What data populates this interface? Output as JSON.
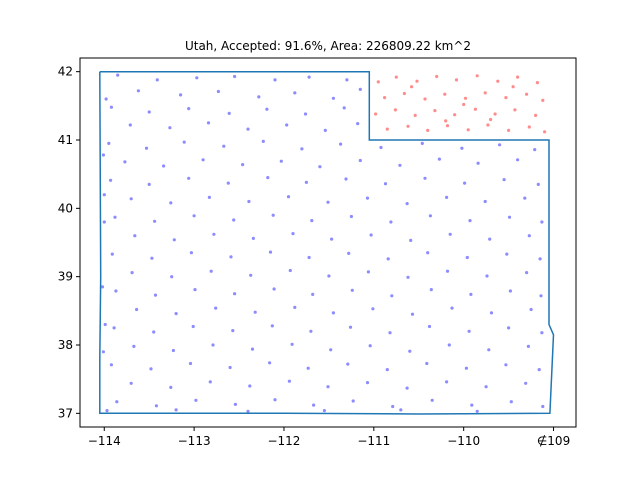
{
  "chart_data": {
    "type": "scatter",
    "title": "Utah, Accepted: 91.6%, Area: 226809.22 km^2",
    "xlabel": "",
    "ylabel": "",
    "xlim": [
      -114.27,
      -108.75
    ],
    "ylim": [
      36.8,
      42.2
    ],
    "grid": false,
    "x_ticks": [
      -114,
      -113,
      -112,
      -111,
      -110,
      -109
    ],
    "y_ticks": [
      37,
      38,
      39,
      40,
      41,
      42
    ],
    "x_tick_labels": [
      "−114",
      "−113",
      "−112",
      "−111",
      "−110",
      "∉109"
    ],
    "y_tick_labels": [
      "37",
      "38",
      "39",
      "40",
      "41",
      "42"
    ],
    "boundary": {
      "color": "#1f77b4",
      "points": [
        [
          -114.05,
          42.0
        ],
        [
          -111.05,
          42.0
        ],
        [
          -111.05,
          41.0
        ],
        [
          -109.05,
          41.0
        ],
        [
          -109.05,
          40.0
        ],
        [
          -109.05,
          39.0
        ],
        [
          -109.05,
          38.3
        ],
        [
          -109.0,
          38.15
        ],
        [
          -109.04,
          37.0
        ],
        [
          -110.5,
          36.99
        ],
        [
          -112.0,
          37.0
        ],
        [
          -114.05,
          37.0
        ],
        [
          -114.05,
          37.8
        ],
        [
          -114.04,
          39.0
        ],
        [
          -114.05,
          42.0
        ]
      ]
    },
    "series": [
      {
        "role": "accepted",
        "color": "#0000ff",
        "points": [
          [
            -113.85,
            41.95
          ],
          [
            -113.41,
            41.88
          ],
          [
            -112.97,
            41.91
          ],
          [
            -112.55,
            41.93
          ],
          [
            -112.1,
            41.88
          ],
          [
            -111.72,
            41.92
          ],
          [
            -111.3,
            41.88
          ],
          [
            -113.62,
            41.72
          ],
          [
            -113.15,
            41.66
          ],
          [
            -112.73,
            41.71
          ],
          [
            -112.28,
            41.63
          ],
          [
            -111.88,
            41.69
          ],
          [
            -111.45,
            41.61
          ],
          [
            -111.15,
            41.74
          ],
          [
            -113.92,
            41.48
          ],
          [
            -113.5,
            41.41
          ],
          [
            -113.06,
            41.46
          ],
          [
            -112.61,
            41.39
          ],
          [
            -112.19,
            41.45
          ],
          [
            -111.76,
            41.38
          ],
          [
            -111.33,
            41.47
          ],
          [
            -113.71,
            41.22
          ],
          [
            -113.27,
            41.18
          ],
          [
            -112.84,
            41.25
          ],
          [
            -112.4,
            41.16
          ],
          [
            -111.97,
            41.22
          ],
          [
            -111.54,
            41.14
          ],
          [
            -111.18,
            41.24
          ],
          [
            -113.95,
            40.95
          ],
          [
            -113.53,
            40.88
          ],
          [
            -113.11,
            40.97
          ],
          [
            -112.67,
            40.91
          ],
          [
            -112.23,
            40.98
          ],
          [
            -111.8,
            40.87
          ],
          [
            -111.37,
            40.94
          ],
          [
            -110.92,
            40.89
          ],
          [
            -110.46,
            40.95
          ],
          [
            -110.02,
            40.88
          ],
          [
            -109.6,
            40.93
          ],
          [
            -109.21,
            40.86
          ],
          [
            -113.77,
            40.68
          ],
          [
            -113.34,
            40.62
          ],
          [
            -112.9,
            40.71
          ],
          [
            -112.46,
            40.64
          ],
          [
            -112.03,
            40.69
          ],
          [
            -111.6,
            40.61
          ],
          [
            -111.15,
            40.7
          ],
          [
            -110.71,
            40.63
          ],
          [
            -110.27,
            40.72
          ],
          [
            -109.84,
            40.66
          ],
          [
            -109.4,
            40.71
          ],
          [
            -113.93,
            40.41
          ],
          [
            -113.5,
            40.35
          ],
          [
            -113.06,
            40.44
          ],
          [
            -112.62,
            40.37
          ],
          [
            -112.18,
            40.45
          ],
          [
            -111.75,
            40.38
          ],
          [
            -111.31,
            40.43
          ],
          [
            -110.87,
            40.36
          ],
          [
            -110.43,
            40.44
          ],
          [
            -109.99,
            40.37
          ],
          [
            -109.55,
            40.42
          ],
          [
            -109.17,
            40.35
          ],
          [
            -113.7,
            40.14
          ],
          [
            -113.26,
            40.08
          ],
          [
            -112.83,
            40.16
          ],
          [
            -112.39,
            40.1
          ],
          [
            -111.95,
            40.17
          ],
          [
            -111.51,
            40.09
          ],
          [
            -111.07,
            40.15
          ],
          [
            -110.63,
            40.07
          ],
          [
            -110.19,
            40.16
          ],
          [
            -109.76,
            40.1
          ],
          [
            -109.32,
            40.15
          ],
          [
            -113.88,
            39.87
          ],
          [
            -113.44,
            39.81
          ],
          [
            -113.0,
            39.89
          ],
          [
            -112.56,
            39.83
          ],
          [
            -112.12,
            39.9
          ],
          [
            -111.69,
            39.82
          ],
          [
            -111.25,
            39.88
          ],
          [
            -110.81,
            39.8
          ],
          [
            -110.37,
            39.89
          ],
          [
            -109.93,
            39.82
          ],
          [
            -109.49,
            39.87
          ],
          [
            -109.13,
            39.8
          ],
          [
            -113.66,
            39.6
          ],
          [
            -113.22,
            39.54
          ],
          [
            -112.78,
            39.62
          ],
          [
            -112.34,
            39.56
          ],
          [
            -111.9,
            39.63
          ],
          [
            -111.47,
            39.55
          ],
          [
            -111.03,
            39.61
          ],
          [
            -110.59,
            39.53
          ],
          [
            -110.15,
            39.62
          ],
          [
            -109.71,
            39.55
          ],
          [
            -109.27,
            39.6
          ],
          [
            -113.91,
            39.33
          ],
          [
            -113.47,
            39.27
          ],
          [
            -113.03,
            39.35
          ],
          [
            -112.59,
            39.29
          ],
          [
            -112.15,
            39.36
          ],
          [
            -111.72,
            39.28
          ],
          [
            -111.28,
            39.34
          ],
          [
            -110.84,
            39.26
          ],
          [
            -110.4,
            39.35
          ],
          [
            -109.96,
            39.28
          ],
          [
            -109.52,
            39.33
          ],
          [
            -109.15,
            39.26
          ],
          [
            -113.69,
            39.06
          ],
          [
            -113.25,
            39.0
          ],
          [
            -112.81,
            39.08
          ],
          [
            -112.37,
            39.02
          ],
          [
            -111.93,
            39.09
          ],
          [
            -111.5,
            39.01
          ],
          [
            -111.06,
            39.07
          ],
          [
            -110.62,
            38.99
          ],
          [
            -110.18,
            39.08
          ],
          [
            -109.74,
            39.01
          ],
          [
            -109.3,
            39.06
          ],
          [
            -113.87,
            38.79
          ],
          [
            -113.43,
            38.73
          ],
          [
            -112.99,
            38.81
          ],
          [
            -112.55,
            38.75
          ],
          [
            -112.11,
            38.82
          ],
          [
            -111.68,
            38.74
          ],
          [
            -111.24,
            38.8
          ],
          [
            -110.8,
            38.72
          ],
          [
            -110.36,
            38.81
          ],
          [
            -109.92,
            38.74
          ],
          [
            -109.48,
            38.79
          ],
          [
            -109.14,
            38.72
          ],
          [
            -113.64,
            38.52
          ],
          [
            -113.2,
            38.46
          ],
          [
            -112.76,
            38.54
          ],
          [
            -112.32,
            38.48
          ],
          [
            -111.88,
            38.55
          ],
          [
            -111.45,
            38.47
          ],
          [
            -111.01,
            38.53
          ],
          [
            -110.57,
            38.45
          ],
          [
            -110.13,
            38.54
          ],
          [
            -109.69,
            38.47
          ],
          [
            -109.25,
            38.52
          ],
          [
            -113.89,
            38.25
          ],
          [
            -113.45,
            38.19
          ],
          [
            -113.01,
            38.27
          ],
          [
            -112.57,
            38.21
          ],
          [
            -112.13,
            38.28
          ],
          [
            -111.7,
            38.2
          ],
          [
            -111.26,
            38.26
          ],
          [
            -110.82,
            38.18
          ],
          [
            -110.38,
            38.27
          ],
          [
            -109.94,
            38.2
          ],
          [
            -109.5,
            38.25
          ],
          [
            -109.13,
            38.18
          ],
          [
            -113.67,
            37.98
          ],
          [
            -113.23,
            37.92
          ],
          [
            -112.79,
            38.0
          ],
          [
            -112.35,
            37.94
          ],
          [
            -111.91,
            38.01
          ],
          [
            -111.48,
            37.93
          ],
          [
            -111.04,
            37.99
          ],
          [
            -110.6,
            37.91
          ],
          [
            -110.16,
            38.0
          ],
          [
            -109.72,
            37.93
          ],
          [
            -109.28,
            37.98
          ],
          [
            -113.92,
            37.71
          ],
          [
            -113.48,
            37.65
          ],
          [
            -113.04,
            37.73
          ],
          [
            -112.6,
            37.67
          ],
          [
            -112.16,
            37.74
          ],
          [
            -111.73,
            37.66
          ],
          [
            -111.29,
            37.72
          ],
          [
            -110.85,
            37.64
          ],
          [
            -110.41,
            37.73
          ],
          [
            -109.97,
            37.66
          ],
          [
            -109.53,
            37.71
          ],
          [
            -109.16,
            37.64
          ],
          [
            -113.7,
            37.44
          ],
          [
            -113.26,
            37.38
          ],
          [
            -112.82,
            37.46
          ],
          [
            -112.38,
            37.4
          ],
          [
            -111.94,
            37.47
          ],
          [
            -111.51,
            37.39
          ],
          [
            -111.07,
            37.45
          ],
          [
            -110.63,
            37.37
          ],
          [
            -110.19,
            37.46
          ],
          [
            -109.75,
            37.39
          ],
          [
            -109.31,
            37.44
          ],
          [
            -113.86,
            37.17
          ],
          [
            -113.42,
            37.11
          ],
          [
            -112.98,
            37.19
          ],
          [
            -112.54,
            37.13
          ],
          [
            -112.1,
            37.2
          ],
          [
            -111.67,
            37.12
          ],
          [
            -111.23,
            37.18
          ],
          [
            -110.79,
            37.1
          ],
          [
            -110.35,
            37.19
          ],
          [
            -109.91,
            37.12
          ],
          [
            -109.47,
            37.17
          ],
          [
            -109.12,
            37.1
          ],
          [
            -113.97,
            37.04
          ],
          [
            -113.2,
            37.05
          ],
          [
            -112.4,
            37.03
          ],
          [
            -111.55,
            37.04
          ],
          [
            -110.7,
            37.05
          ],
          [
            -109.85,
            37.03
          ],
          [
            -114.01,
            40.78
          ],
          [
            -114.0,
            39.8
          ],
          [
            -114.02,
            38.85
          ],
          [
            -114.01,
            37.9
          ],
          [
            -113.98,
            41.6
          ],
          [
            -114.0,
            40.2
          ],
          [
            -113.99,
            38.3
          ]
        ]
      },
      {
        "role": "rejected",
        "color": "#ff0000",
        "points": [
          [
            -110.95,
            41.85
          ],
          [
            -110.75,
            41.92
          ],
          [
            -110.52,
            41.86
          ],
          [
            -110.3,
            41.93
          ],
          [
            -110.08,
            41.88
          ],
          [
            -109.85,
            41.94
          ],
          [
            -109.62,
            41.86
          ],
          [
            -109.4,
            41.92
          ],
          [
            -109.18,
            41.84
          ],
          [
            -110.88,
            41.62
          ],
          [
            -110.66,
            41.68
          ],
          [
            -110.43,
            41.6
          ],
          [
            -110.21,
            41.67
          ],
          [
            -109.98,
            41.61
          ],
          [
            -109.76,
            41.69
          ],
          [
            -109.53,
            41.62
          ],
          [
            -109.3,
            41.67
          ],
          [
            -109.12,
            41.58
          ],
          [
            -110.98,
            41.38
          ],
          [
            -110.76,
            41.44
          ],
          [
            -110.54,
            41.36
          ],
          [
            -110.32,
            41.43
          ],
          [
            -110.1,
            41.37
          ],
          [
            -109.87,
            41.45
          ],
          [
            -109.65,
            41.38
          ],
          [
            -109.43,
            41.44
          ],
          [
            -109.2,
            41.36
          ],
          [
            -110.85,
            41.16
          ],
          [
            -110.62,
            41.2
          ],
          [
            -110.4,
            41.14
          ],
          [
            -110.18,
            41.21
          ],
          [
            -109.95,
            41.15
          ],
          [
            -109.73,
            41.22
          ],
          [
            -109.5,
            41.14
          ],
          [
            -109.27,
            41.19
          ],
          [
            -109.1,
            41.12
          ],
          [
            -110.58,
            41.78
          ],
          [
            -110.0,
            41.52
          ],
          [
            -109.45,
            41.78
          ],
          [
            -110.2,
            41.28
          ],
          [
            -109.7,
            41.3
          ]
        ]
      }
    ]
  }
}
